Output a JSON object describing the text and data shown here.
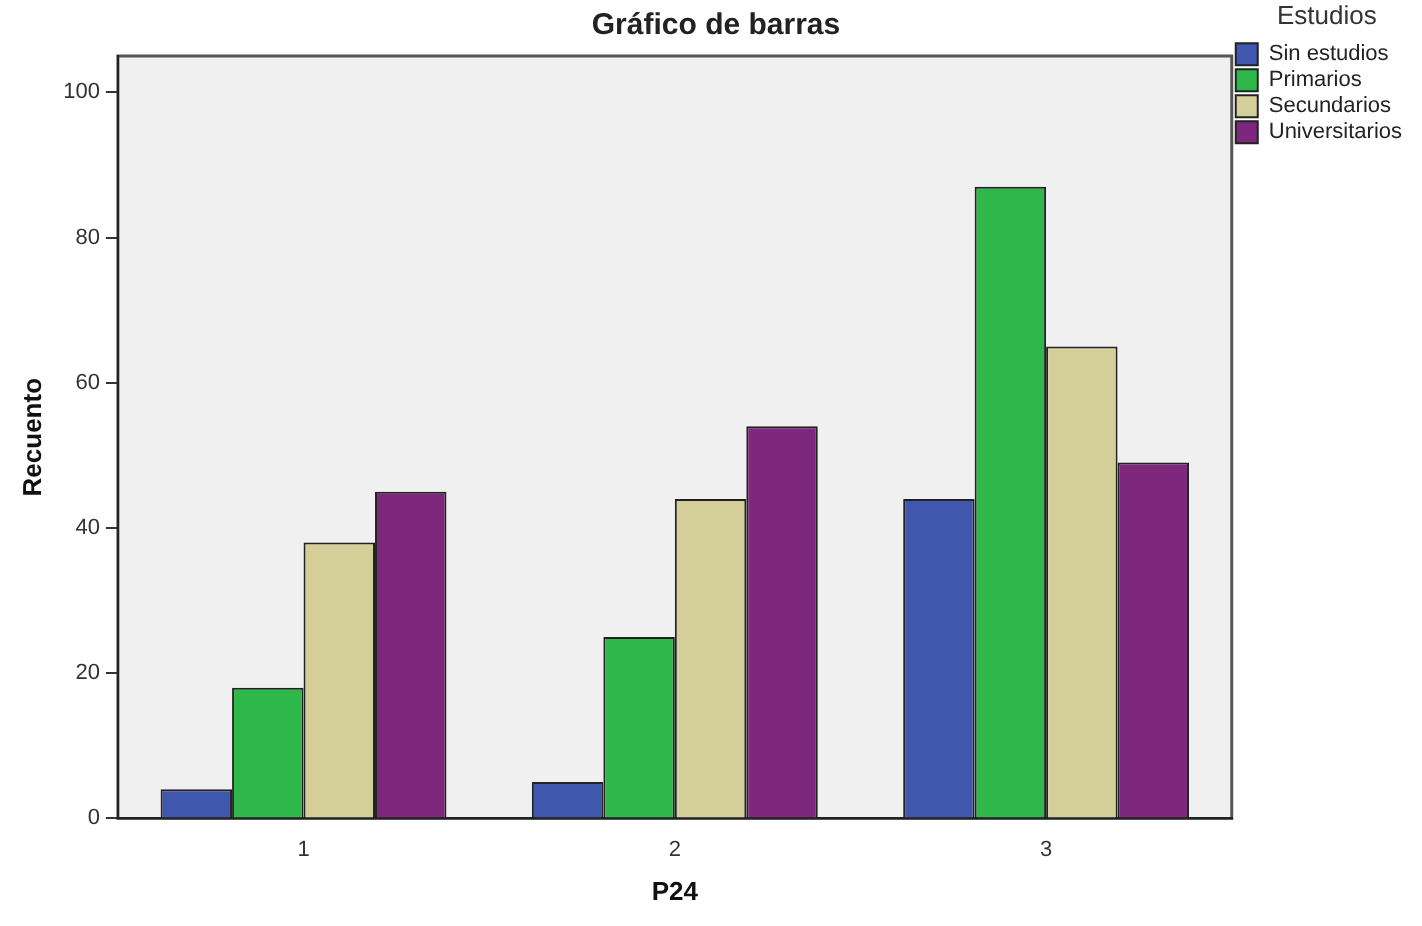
{
  "chart_data": {
    "type": "bar",
    "title": "Gráfico de barras",
    "xlabel": "P24",
    "ylabel": "Recuento",
    "legend_title": "Estudios",
    "categories": [
      "1",
      "2",
      "3"
    ],
    "series": [
      {
        "name": "Sin estudios",
        "color": "#3f57ad",
        "values": [
          4,
          5,
          44
        ]
      },
      {
        "name": "Primarios",
        "color": "#2fb84a",
        "values": [
          18,
          25,
          87
        ]
      },
      {
        "name": "Secundarios",
        "color": "#d4cf98",
        "values": [
          38,
          44,
          65
        ]
      },
      {
        "name": "Universitarios",
        "color": "#7d287d",
        "values": [
          45,
          54,
          49
        ]
      }
    ],
    "ylim": [
      0,
      105
    ],
    "yticks": [
      0,
      20,
      40,
      60,
      80,
      100
    ],
    "grid": false,
    "legend": "top right"
  }
}
